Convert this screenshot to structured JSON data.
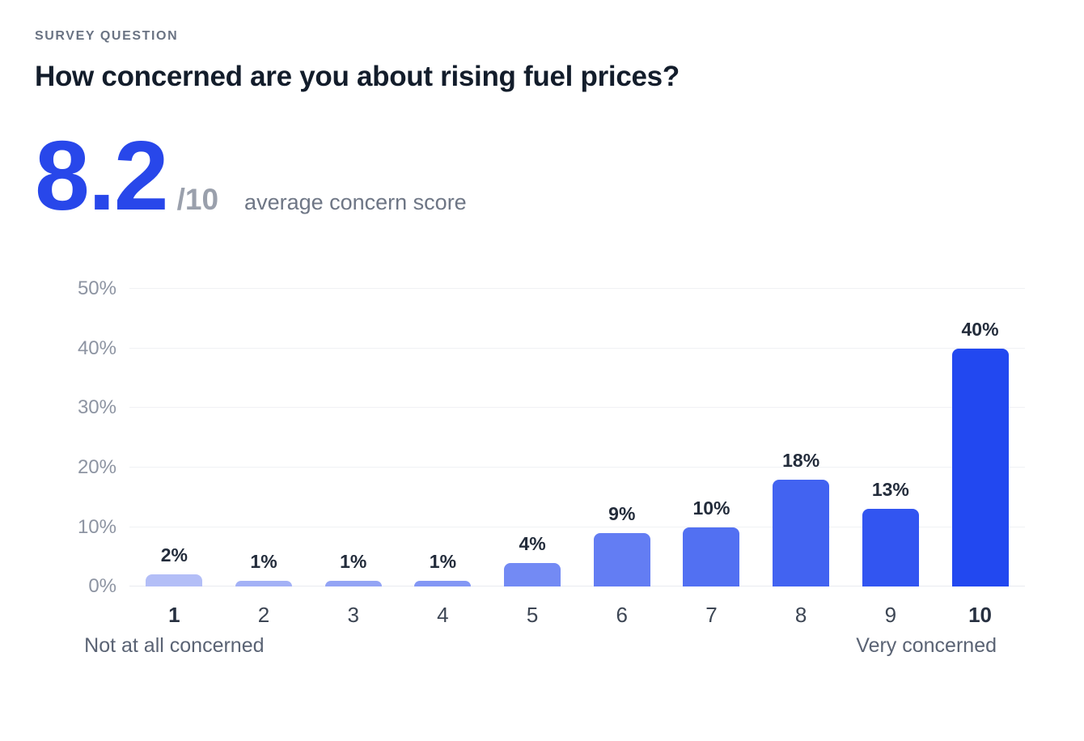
{
  "header": {
    "eyebrow": "SURVEY QUESTION",
    "title": "How concerned are you about rising fuel prices?"
  },
  "score": {
    "value": "8.2",
    "denominator": "/10",
    "caption": "average concern score"
  },
  "chart_data": {
    "type": "bar",
    "categories": [
      "1",
      "2",
      "3",
      "4",
      "5",
      "6",
      "7",
      "8",
      "9",
      "10"
    ],
    "values": [
      2,
      1,
      1,
      1,
      4,
      9,
      10,
      18,
      13,
      40
    ],
    "value_labels": [
      "2%",
      "1%",
      "1%",
      "1%",
      "4%",
      "9%",
      "10%",
      "18%",
      "13%",
      "40%"
    ],
    "unit": "%",
    "ylim": [
      0,
      50
    ],
    "y_tick_values": [
      0,
      10,
      20,
      30,
      40,
      50
    ],
    "y_tick_labels": [
      "0%",
      "10%",
      "20%",
      "30%",
      "40%",
      "50%"
    ],
    "grid": true,
    "legend": false,
    "bold_categories": [
      "1",
      "10"
    ],
    "bar_colors": [
      "#b3bef7",
      "#a3b1f6",
      "#93a4f5",
      "#8397f5",
      "#738af4",
      "#637df3",
      "#5270f2",
      "#4263f1",
      "#3255f1",
      "#2248f0"
    ],
    "axis_left_label": "Not at all concerned",
    "axis_right_label": "Very concerned"
  },
  "colors": {
    "accent_blue": "#2847ea",
    "grid_line": "#f0f1f4",
    "baseline": "#e8ebef",
    "bar_label_dark": "#232c3b",
    "tick_gray": "#8d94a2"
  }
}
